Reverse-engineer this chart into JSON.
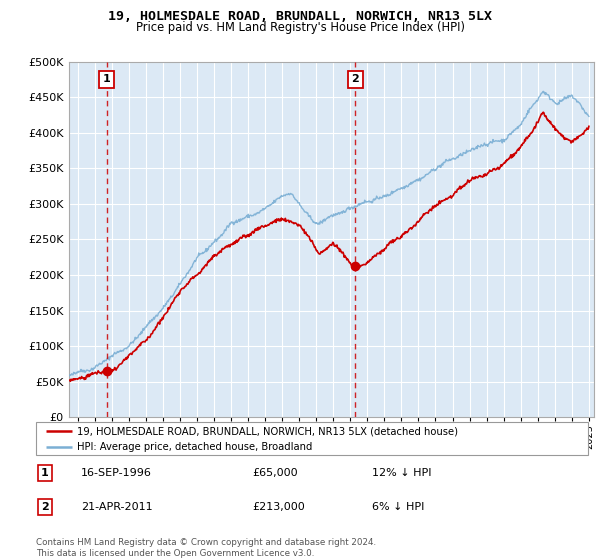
{
  "title": "19, HOLMESDALE ROAD, BRUNDALL, NORWICH, NR13 5LX",
  "subtitle": "Price paid vs. HM Land Registry's House Price Index (HPI)",
  "legend_line1": "19, HOLMESDALE ROAD, BRUNDALL, NORWICH, NR13 5LX (detached house)",
  "legend_line2": "HPI: Average price, detached house, Broadland",
  "annotation1_date": "16-SEP-1996",
  "annotation1_price": "£65,000",
  "annotation1_hpi": "12% ↓ HPI",
  "annotation2_date": "21-APR-2011",
  "annotation2_price": "£213,000",
  "annotation2_hpi": "6% ↓ HPI",
  "footer": "Contains HM Land Registry data © Crown copyright and database right 2024.\nThis data is licensed under the Open Government Licence v3.0.",
  "price_color": "#cc0000",
  "hpi_color": "#7bafd4",
  "background_color": "#dce9f5",
  "ylim": [
    0,
    500000
  ],
  "yticks": [
    0,
    50000,
    100000,
    150000,
    200000,
    250000,
    300000,
    350000,
    400000,
    450000,
    500000
  ],
  "sale1_year": 1996.71,
  "sale1_price": 65000,
  "sale2_year": 2011.3,
  "sale2_price": 213000,
  "vline1_year": 1996.71,
  "vline2_year": 2011.3
}
